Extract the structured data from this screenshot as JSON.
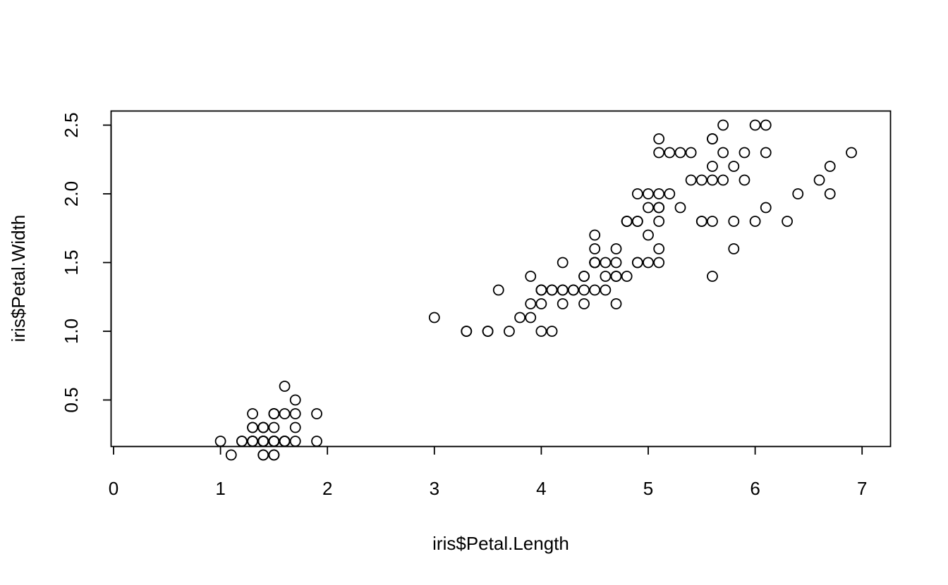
{
  "chart_data": {
    "type": "scatter",
    "xlabel": "iris$Petal.Length",
    "ylabel": "iris$Petal.Width",
    "xlim": [
      1.0,
      6.9
    ],
    "ylim": [
      0.1,
      2.5
    ],
    "x_ticks": [
      0,
      1,
      2,
      3,
      4,
      5,
      6,
      7
    ],
    "y_ticks": [
      0.5,
      1.0,
      1.5,
      2.0,
      2.5
    ],
    "x_tick_labels": [
      "0",
      "1",
      "2",
      "3",
      "4",
      "5",
      "6",
      "7"
    ],
    "y_tick_labels": [
      "0.5",
      "1.0",
      "1.5",
      "2.0",
      "2.5"
    ],
    "grid": false,
    "marker": "open-circle",
    "points": [
      [
        1.4,
        0.2
      ],
      [
        1.4,
        0.2
      ],
      [
        1.3,
        0.2
      ],
      [
        1.5,
        0.2
      ],
      [
        1.4,
        0.2
      ],
      [
        1.7,
        0.4
      ],
      [
        1.4,
        0.3
      ],
      [
        1.5,
        0.2
      ],
      [
        1.4,
        0.2
      ],
      [
        1.5,
        0.1
      ],
      [
        1.5,
        0.2
      ],
      [
        1.6,
        0.2
      ],
      [
        1.4,
        0.1
      ],
      [
        1.1,
        0.1
      ],
      [
        1.2,
        0.2
      ],
      [
        1.5,
        0.4
      ],
      [
        1.3,
        0.4
      ],
      [
        1.4,
        0.3
      ],
      [
        1.7,
        0.3
      ],
      [
        1.5,
        0.3
      ],
      [
        1.7,
        0.2
      ],
      [
        1.5,
        0.4
      ],
      [
        1.0,
        0.2
      ],
      [
        1.7,
        0.5
      ],
      [
        1.9,
        0.2
      ],
      [
        1.6,
        0.2
      ],
      [
        1.6,
        0.4
      ],
      [
        1.5,
        0.2
      ],
      [
        1.4,
        0.2
      ],
      [
        1.6,
        0.2
      ],
      [
        1.6,
        0.2
      ],
      [
        1.5,
        0.4
      ],
      [
        1.5,
        0.1
      ],
      [
        1.4,
        0.2
      ],
      [
        1.5,
        0.2
      ],
      [
        1.2,
        0.2
      ],
      [
        1.3,
        0.2
      ],
      [
        1.4,
        0.1
      ],
      [
        1.3,
        0.2
      ],
      [
        1.5,
        0.2
      ],
      [
        1.3,
        0.3
      ],
      [
        1.3,
        0.3
      ],
      [
        1.3,
        0.2
      ],
      [
        1.6,
        0.6
      ],
      [
        1.9,
        0.4
      ],
      [
        1.4,
        0.3
      ],
      [
        1.6,
        0.2
      ],
      [
        1.4,
        0.2
      ],
      [
        1.5,
        0.2
      ],
      [
        1.4,
        0.2
      ],
      [
        4.7,
        1.4
      ],
      [
        4.5,
        1.5
      ],
      [
        4.9,
        1.5
      ],
      [
        4.0,
        1.3
      ],
      [
        4.6,
        1.5
      ],
      [
        4.5,
        1.3
      ],
      [
        4.7,
        1.6
      ],
      [
        3.3,
        1.0
      ],
      [
        4.6,
        1.3
      ],
      [
        3.9,
        1.4
      ],
      [
        3.5,
        1.0
      ],
      [
        4.2,
        1.5
      ],
      [
        4.0,
        1.0
      ],
      [
        4.7,
        1.4
      ],
      [
        3.6,
        1.3
      ],
      [
        4.4,
        1.4
      ],
      [
        4.5,
        1.5
      ],
      [
        4.1,
        1.0
      ],
      [
        4.5,
        1.5
      ],
      [
        3.9,
        1.1
      ],
      [
        4.8,
        1.8
      ],
      [
        4.0,
        1.3
      ],
      [
        4.9,
        1.5
      ],
      [
        4.7,
        1.2
      ],
      [
        4.3,
        1.3
      ],
      [
        4.4,
        1.4
      ],
      [
        4.8,
        1.4
      ],
      [
        5.0,
        1.7
      ],
      [
        4.5,
        1.5
      ],
      [
        3.5,
        1.0
      ],
      [
        3.8,
        1.1
      ],
      [
        3.7,
        1.0
      ],
      [
        3.9,
        1.2
      ],
      [
        5.1,
        1.6
      ],
      [
        4.5,
        1.5
      ],
      [
        4.5,
        1.6
      ],
      [
        4.7,
        1.5
      ],
      [
        4.4,
        1.3
      ],
      [
        4.1,
        1.3
      ],
      [
        4.0,
        1.3
      ],
      [
        4.4,
        1.2
      ],
      [
        4.6,
        1.4
      ],
      [
        4.0,
        1.2
      ],
      [
        3.3,
        1.0
      ],
      [
        4.2,
        1.3
      ],
      [
        4.2,
        1.2
      ],
      [
        4.2,
        1.3
      ],
      [
        4.3,
        1.3
      ],
      [
        3.0,
        1.1
      ],
      [
        4.1,
        1.3
      ],
      [
        6.0,
        2.5
      ],
      [
        5.1,
        1.9
      ],
      [
        5.9,
        2.1
      ],
      [
        5.6,
        1.8
      ],
      [
        5.8,
        2.2
      ],
      [
        6.6,
        2.1
      ],
      [
        4.5,
        1.7
      ],
      [
        6.3,
        1.8
      ],
      [
        5.8,
        1.8
      ],
      [
        6.1,
        2.5
      ],
      [
        5.1,
        2.0
      ],
      [
        5.3,
        1.9
      ],
      [
        5.5,
        2.1
      ],
      [
        5.0,
        2.0
      ],
      [
        5.1,
        2.4
      ],
      [
        5.3,
        2.3
      ],
      [
        5.5,
        1.8
      ],
      [
        6.7,
        2.2
      ],
      [
        6.9,
        2.3
      ],
      [
        5.0,
        1.5
      ],
      [
        5.7,
        2.3
      ],
      [
        4.9,
        2.0
      ],
      [
        6.7,
        2.0
      ],
      [
        4.9,
        1.8
      ],
      [
        5.7,
        2.1
      ],
      [
        6.0,
        1.8
      ],
      [
        4.8,
        1.8
      ],
      [
        4.9,
        1.8
      ],
      [
        5.6,
        2.1
      ],
      [
        5.8,
        1.6
      ],
      [
        6.1,
        1.9
      ],
      [
        6.4,
        2.0
      ],
      [
        5.6,
        2.2
      ],
      [
        5.1,
        1.5
      ],
      [
        5.6,
        1.4
      ],
      [
        6.1,
        2.3
      ],
      [
        5.6,
        2.4
      ],
      [
        5.5,
        1.8
      ],
      [
        4.8,
        1.8
      ],
      [
        5.4,
        2.1
      ],
      [
        5.6,
        2.4
      ],
      [
        5.1,
        2.3
      ],
      [
        5.1,
        1.9
      ],
      [
        5.9,
        2.3
      ],
      [
        5.7,
        2.5
      ],
      [
        5.2,
        2.3
      ],
      [
        5.0,
        1.9
      ],
      [
        5.2,
        2.0
      ],
      [
        5.4,
        2.3
      ],
      [
        5.1,
        1.8
      ]
    ]
  }
}
